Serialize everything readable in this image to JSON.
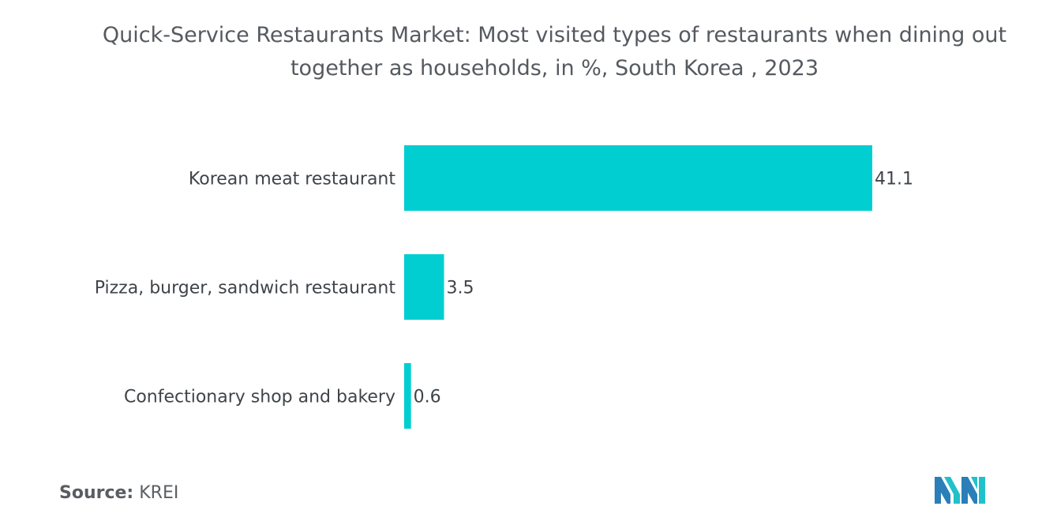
{
  "chart_data": {
    "type": "bar",
    "orientation": "horizontal",
    "title": "Quick-Service Restaurants Market: Most visited types of restaurants when dining out together as households, in %, South Korea , 2023",
    "categories": [
      "Korean meat restaurant",
      "Pizza, burger, sandwich restaurant",
      "Confectionary shop and bakery"
    ],
    "values": [
      41.1,
      3.5,
      0.6
    ],
    "value_labels": [
      "41.1",
      "3.5",
      "0.6"
    ],
    "xlim": [
      0,
      41.1
    ],
    "grid": false,
    "legend": "none",
    "bar_color": "#00ced1"
  },
  "source": {
    "label": "Source:",
    "value": "KREI"
  },
  "logo": {
    "colors": [
      "#2a7fb8",
      "#20c1c9"
    ],
    "icon": "mordor-intelligence-logo-icon"
  }
}
